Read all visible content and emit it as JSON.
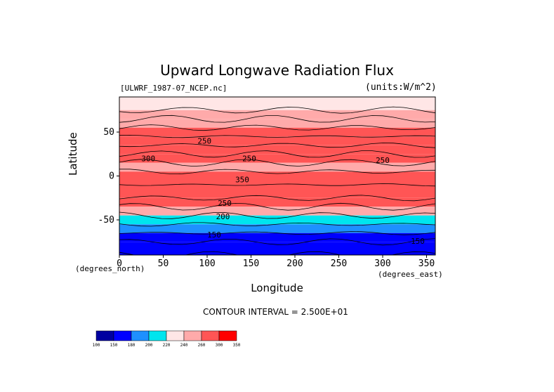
{
  "chart_data": {
    "type": "heatmap",
    "title": "Upward Longwave Radiation Flux",
    "source_label": "[ULWRF_1987-07_NCEP.nc]",
    "units_label": "(units:W/m^2)",
    "xlabel": "Longitude",
    "ylabel": "Latitude",
    "x_unit_label": "(degrees_east)",
    "y_unit_label": "(degrees_north)",
    "xlim": [
      0,
      360
    ],
    "ylim": [
      -90,
      90
    ],
    "x_ticks": [
      0,
      50,
      100,
      150,
      200,
      250,
      300,
      350
    ],
    "y_ticks": [
      50,
      0,
      -50
    ],
    "contour_interval_label": "CONTOUR INTERVAL = 2.500E+01",
    "contour_labels": [
      {
        "text": "250",
        "lon": 97,
        "lat": 37
      },
      {
        "text": "250",
        "lon": 148,
        "lat": 17
      },
      {
        "text": "300",
        "lon": 33,
        "lat": 17
      },
      {
        "text": "250",
        "lon": 300,
        "lat": 15
      },
      {
        "text": "350",
        "lon": 140,
        "lat": -7
      },
      {
        "text": "250",
        "lon": 120,
        "lat": -34
      },
      {
        "text": "200",
        "lon": 118,
        "lat": -49
      },
      {
        "text": "150",
        "lon": 108,
        "lat": -70
      },
      {
        "text": "150",
        "lon": 340,
        "lat": -77
      }
    ],
    "legend": {
      "boundaries": [
        "100",
        "150",
        "180",
        "200",
        "220",
        "240",
        "260",
        "300",
        "350"
      ],
      "colors": [
        "#0000a0",
        "#0000ff",
        "#1e90ff",
        "#00e5ee",
        "#ffe6e6",
        "#ffaaaa",
        "#ff5555",
        "#ff0000"
      ]
    },
    "zonal_profile": [
      {
        "lat_from": 90,
        "lat_to": 75,
        "value": 225
      },
      {
        "lat_from": 75,
        "lat_to": 65,
        "value": 250
      },
      {
        "lat_from": 65,
        "lat_to": 55,
        "value": 255
      },
      {
        "lat_from": 55,
        "lat_to": 45,
        "value": 262
      },
      {
        "lat_from": 45,
        "lat_to": 35,
        "value": 275
      },
      {
        "lat_from": 35,
        "lat_to": 25,
        "value": 285
      },
      {
        "lat_from": 25,
        "lat_to": 15,
        "value": 265
      },
      {
        "lat_from": 15,
        "lat_to": 5,
        "value": 255
      },
      {
        "lat_from": 5,
        "lat_to": -10,
        "value": 270
      },
      {
        "lat_from": -10,
        "lat_to": -25,
        "value": 275
      },
      {
        "lat_from": -25,
        "lat_to": -35,
        "value": 262
      },
      {
        "lat_from": -35,
        "lat_to": -45,
        "value": 245
      },
      {
        "lat_from": -45,
        "lat_to": -55,
        "value": 215
      },
      {
        "lat_from": -55,
        "lat_to": -65,
        "value": 195
      },
      {
        "lat_from": -65,
        "lat_to": -75,
        "value": 170
      },
      {
        "lat_from": -75,
        "lat_to": -90,
        "value": 150
      }
    ],
    "grid": false
  }
}
